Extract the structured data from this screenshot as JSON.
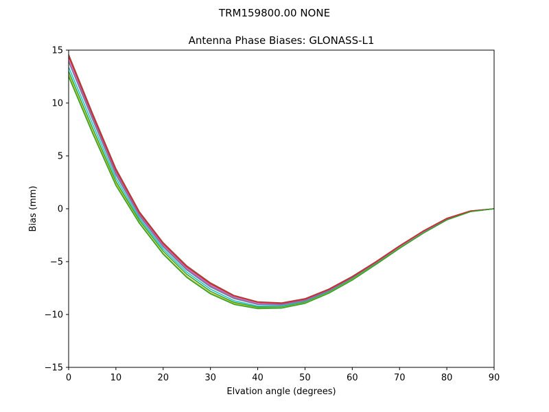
{
  "suptitle": "TRM159800.00    NONE",
  "chart_data": {
    "type": "line",
    "title": "Antenna Phase Biases: GLONASS-L1",
    "xlabel": "Elvation angle (degrees)",
    "ylabel": "Bias (mm)",
    "xlim": [
      0,
      90
    ],
    "ylim": [
      -15,
      15
    ],
    "xticks": [
      0,
      10,
      20,
      30,
      40,
      50,
      60,
      70,
      80,
      90
    ],
    "yticks": [
      -15,
      -10,
      -5,
      0,
      5,
      10,
      15
    ],
    "ytick_labels": [
      "−15",
      "−10",
      "−5",
      "0",
      "5",
      "10",
      "15"
    ],
    "grid": false,
    "legend": "none",
    "x": [
      0,
      5,
      10,
      15,
      20,
      25,
      30,
      35,
      40,
      45,
      50,
      55,
      60,
      65,
      70,
      75,
      80,
      85,
      90
    ],
    "series": [
      {
        "color": "#8c564b",
        "values": [
          14.6,
          9.1,
          3.8,
          -0.3,
          -3.2,
          -5.4,
          -7.0,
          -8.2,
          -8.8,
          -8.9,
          -8.5,
          -7.6,
          -6.4,
          -5.0,
          -3.5,
          -2.1,
          -0.9,
          -0.2,
          0.0
        ]
      },
      {
        "color": "#e377c2",
        "values": [
          14.3,
          8.8,
          3.5,
          -0.5,
          -3.4,
          -5.6,
          -7.2,
          -8.3,
          -8.9,
          -9.0,
          -8.6,
          -7.7,
          -6.5,
          -5.05,
          -3.55,
          -2.15,
          -0.95,
          -0.22,
          0.0
        ]
      },
      {
        "color": "#7f7f7f",
        "values": [
          13.9,
          8.5,
          3.2,
          -0.7,
          -3.6,
          -5.8,
          -7.4,
          -8.5,
          -9.05,
          -9.1,
          -8.7,
          -7.8,
          -6.55,
          -5.1,
          -3.6,
          -2.2,
          -1.0,
          -0.24,
          0.0
        ]
      },
      {
        "color": "#17becf",
        "values": [
          13.4,
          8.1,
          2.9,
          -0.9,
          -3.8,
          -6.0,
          -7.6,
          -8.7,
          -9.2,
          -9.2,
          -8.8,
          -7.85,
          -6.6,
          -5.15,
          -3.65,
          -2.25,
          -1.02,
          -0.25,
          0.0
        ]
      },
      {
        "color": "#2ca02c",
        "values": [
          13.0,
          7.7,
          2.6,
          -1.1,
          -4.0,
          -6.2,
          -7.8,
          -8.85,
          -9.3,
          -9.3,
          -8.85,
          -7.9,
          -6.65,
          -5.2,
          -3.7,
          -2.28,
          -1.04,
          -0.26,
          0.0
        ]
      },
      {
        "color": "#bcbd22",
        "values": [
          12.7,
          7.4,
          2.4,
          -1.3,
          -4.2,
          -6.4,
          -7.95,
          -8.95,
          -9.4,
          -9.35,
          -8.9,
          -7.95,
          -6.7,
          -5.25,
          -3.72,
          -2.3,
          -1.05,
          -0.27,
          0.0
        ]
      },
      {
        "color": "#9467bd",
        "values": [
          14.0,
          8.7,
          3.4,
          -0.6,
          -3.5,
          -5.7,
          -7.3,
          -8.4,
          -9.0,
          -9.05,
          -8.65,
          -7.75,
          -6.5,
          -5.08,
          -3.58,
          -2.18,
          -0.98,
          -0.23,
          0.0
        ]
      },
      {
        "color": "#d62728",
        "values": [
          14.4,
          8.95,
          3.65,
          -0.4,
          -3.3,
          -5.5,
          -7.1,
          -8.25,
          -8.85,
          -8.95,
          -8.55,
          -7.65,
          -6.45,
          -5.02,
          -3.52,
          -2.12,
          -0.92,
          -0.21,
          0.0
        ]
      },
      {
        "color": "#2ca02c",
        "values": [
          12.5,
          7.2,
          2.2,
          -1.4,
          -4.3,
          -6.5,
          -8.05,
          -9.05,
          -9.45,
          -9.4,
          -8.95,
          -8.0,
          -6.75,
          -5.28,
          -3.75,
          -2.32,
          -1.06,
          -0.28,
          0.0
        ]
      }
    ]
  }
}
